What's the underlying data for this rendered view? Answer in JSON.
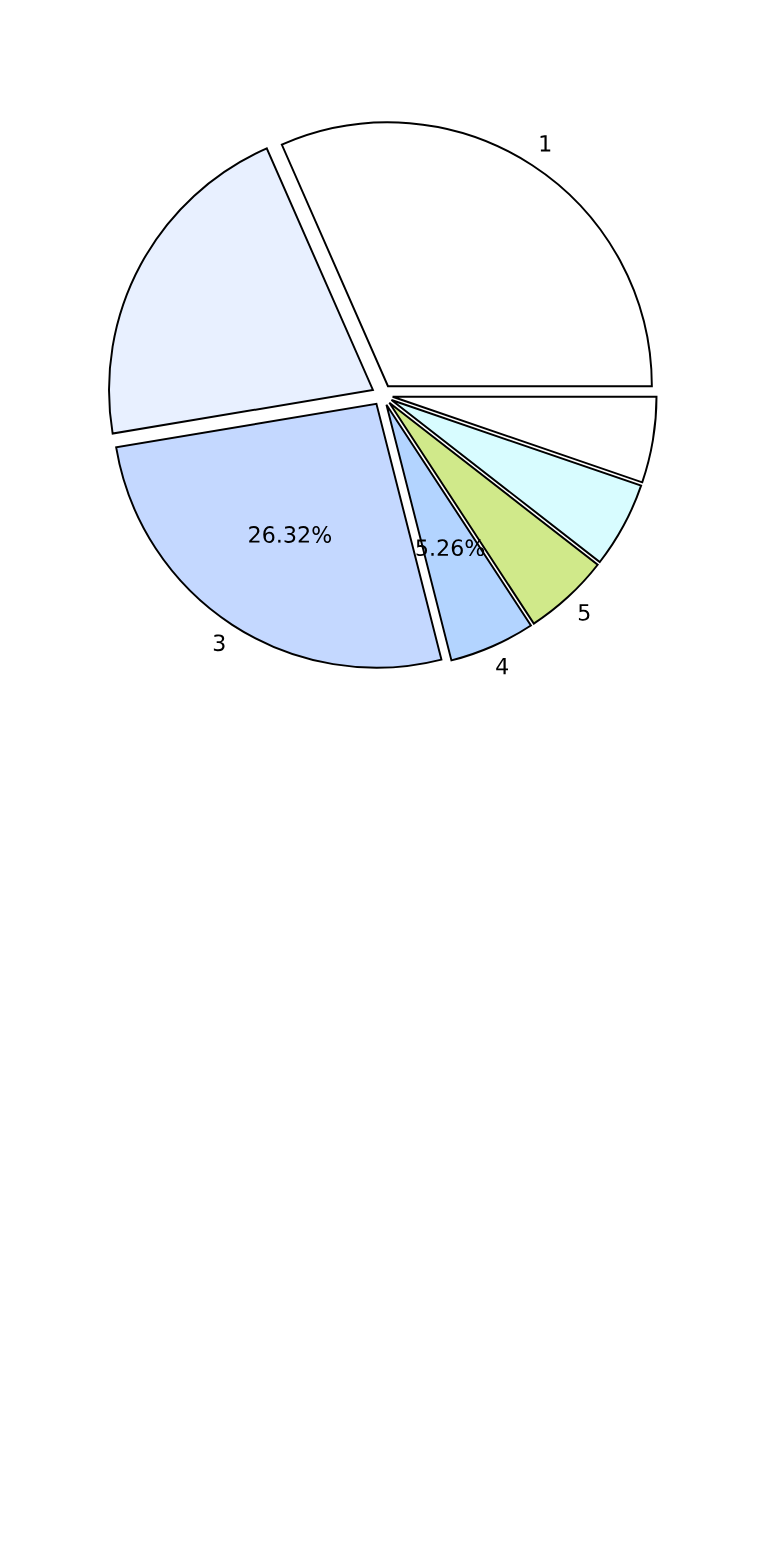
{
  "chart_data": {
    "type": "pie",
    "categories": [
      "1",
      null,
      "3",
      "4",
      "5",
      null,
      null
    ],
    "values": [
      31.59,
      21.05,
      26.32,
      5.26,
      5.26,
      5.26,
      5.26
    ],
    "value_labels": [
      null,
      null,
      "26.32%",
      "5.26%",
      null,
      null,
      null
    ],
    "colors": [
      "#ffffff",
      "#e8f0ff",
      "#c4d8ff",
      "#b3d4ff",
      "#d0e98a",
      "#d8fcff",
      "#ffffff"
    ]
  }
}
